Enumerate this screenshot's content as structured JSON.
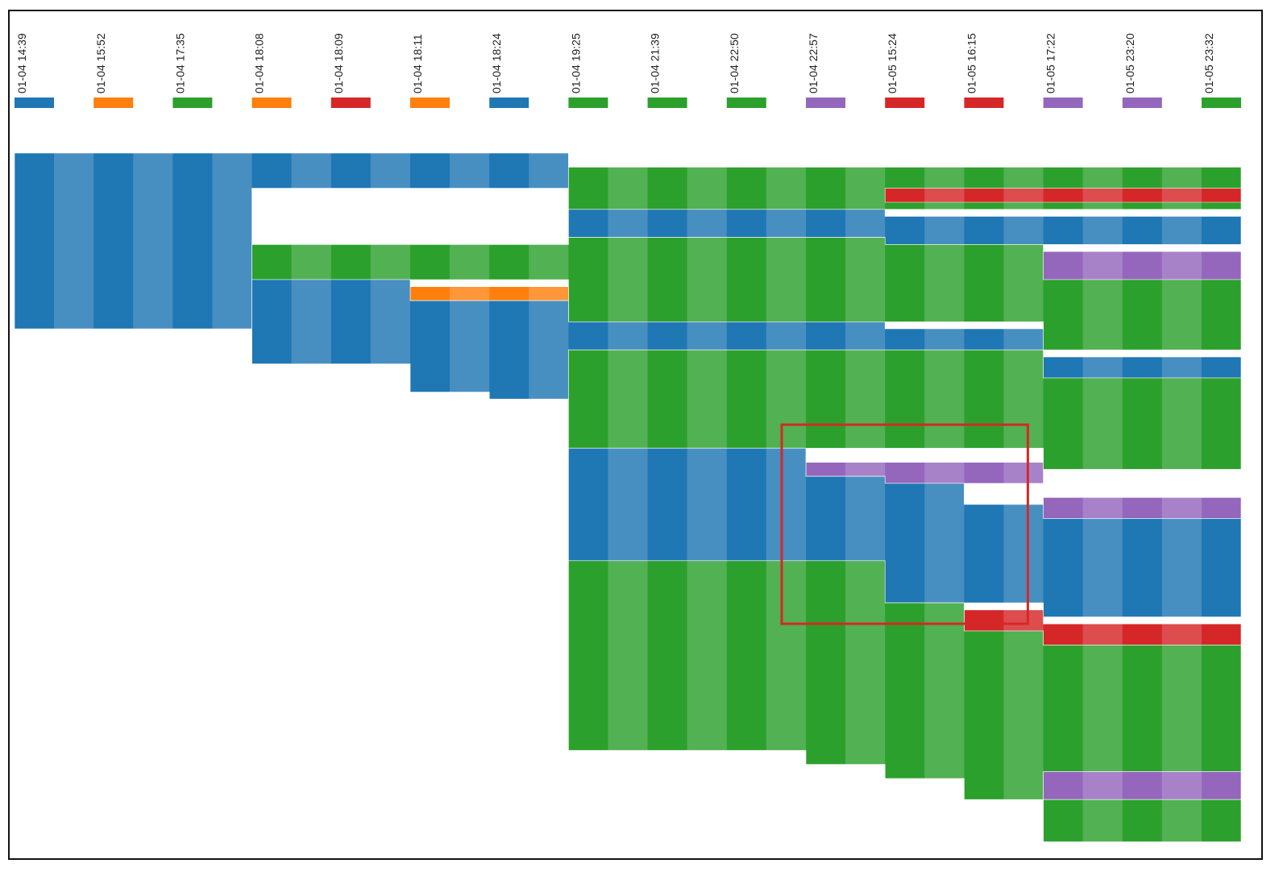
{
  "colors": {
    "blue": "#1f77b4",
    "orange": "#ff7f0e",
    "green": "#2ca02c",
    "red": "#d62728",
    "purple": "#9467bd",
    "highlight": "#d62728"
  },
  "chart_data": {
    "type": "area",
    "x": [
      "01-04 14:39",
      "01-04 15:52",
      "01-04 17:35",
      "01-04 18:08",
      "01-04 18:09",
      "01-04 18:11",
      "01-04 18:24",
      "01-04 19:25",
      "01-04 21:39",
      "01-04 22:50",
      "01-04 22:57",
      "01-05 15:24",
      "01-05 16:15",
      "01-05 17:22",
      "01-05 23:20",
      "01-05 23:32"
    ],
    "legend_colors": [
      "blue",
      "orange",
      "green",
      "orange",
      "red",
      "orange",
      "blue",
      "green",
      "green",
      "green",
      "purple",
      "red",
      "red",
      "purple",
      "purple",
      "green"
    ],
    "ylim": [
      0,
      100
    ],
    "series_stack_order": [
      "blue",
      "green",
      "red",
      "orange",
      "purple"
    ],
    "bands": [
      {
        "color": "blue",
        "top": [
          0,
          0,
          0,
          0,
          0,
          0,
          0,
          2,
          2,
          2,
          2,
          2,
          2,
          2,
          2,
          2
        ],
        "bottom": [
          25,
          25,
          25,
          5,
          5,
          5,
          5,
          2,
          2,
          2,
          2,
          2,
          2,
          2,
          2,
          2
        ]
      },
      {
        "color": "green",
        "top": [
          0,
          0,
          0,
          0,
          0,
          0,
          0,
          2,
          2,
          2,
          2,
          2,
          2,
          2,
          2,
          2
        ],
        "bottom": [
          0,
          0,
          0,
          0,
          0,
          0,
          0,
          8,
          8,
          8,
          8,
          8,
          8,
          8,
          8,
          8
        ]
      },
      {
        "color": "red",
        "top": [
          0,
          0,
          0,
          0,
          0,
          0,
          0,
          0,
          0,
          0,
          0,
          5,
          5,
          5,
          5,
          5
        ],
        "bottom": [
          0,
          0,
          0,
          0,
          0,
          0,
          0,
          0,
          0,
          0,
          0,
          7,
          7,
          7,
          7,
          7
        ]
      },
      {
        "color": "blue",
        "top": [
          0,
          0,
          0,
          0,
          0,
          0,
          0,
          8,
          8,
          8,
          8,
          9,
          9,
          9,
          9,
          9
        ],
        "bottom": [
          0,
          0,
          0,
          0,
          0,
          0,
          0,
          12,
          12,
          12,
          12,
          13,
          13,
          13,
          13,
          13
        ]
      },
      {
        "color": "purple",
        "top": [
          0,
          0,
          0,
          0,
          0,
          0,
          0,
          0,
          0,
          0,
          0,
          0,
          0,
          14,
          14,
          14
        ],
        "bottom": [
          0,
          0,
          0,
          0,
          0,
          0,
          0,
          0,
          0,
          0,
          0,
          0,
          0,
          18,
          18,
          18
        ]
      },
      {
        "color": "green",
        "top": [
          0,
          0,
          0,
          13,
          13,
          13,
          13,
          12,
          12,
          12,
          12,
          13,
          13,
          18,
          18,
          18
        ],
        "bottom": [
          0,
          0,
          0,
          18,
          18,
          18,
          18,
          24,
          24,
          24,
          24,
          24,
          24,
          28,
          28,
          28
        ]
      },
      {
        "color": "orange",
        "top": [
          0,
          0,
          0,
          0,
          0,
          19,
          19,
          0,
          0,
          0,
          0,
          0,
          0,
          0,
          0,
          0
        ],
        "bottom": [
          0,
          0,
          0,
          0,
          0,
          21,
          21,
          0,
          0,
          0,
          0,
          0,
          0,
          0,
          0,
          0
        ]
      },
      {
        "color": "blue",
        "top": [
          0,
          0,
          0,
          18,
          18,
          21,
          21,
          24,
          24,
          24,
          24,
          25,
          25,
          29,
          29,
          29
        ],
        "bottom": [
          0,
          0,
          0,
          30,
          30,
          34,
          35,
          28,
          28,
          28,
          28,
          28,
          28,
          32,
          32,
          32
        ]
      },
      {
        "color": "green",
        "top": [
          0,
          0,
          0,
          0,
          0,
          0,
          0,
          28,
          28,
          28,
          28,
          28,
          28,
          32,
          32,
          32
        ],
        "bottom": [
          0,
          0,
          0,
          0,
          0,
          0,
          0,
          42,
          42,
          42,
          42,
          42,
          42,
          45,
          45,
          45
        ]
      },
      {
        "color": "purple",
        "top": [
          0,
          0,
          0,
          0,
          0,
          0,
          0,
          0,
          0,
          0,
          44,
          44,
          44,
          49,
          49,
          49
        ],
        "bottom": [
          0,
          0,
          0,
          0,
          0,
          0,
          0,
          0,
          0,
          0,
          46,
          47,
          47,
          52,
          52,
          52
        ]
      },
      {
        "color": "blue",
        "top": [
          0,
          0,
          0,
          0,
          0,
          0,
          0,
          42,
          42,
          42,
          46,
          47,
          50,
          52,
          52,
          52
        ],
        "bottom": [
          0,
          0,
          0,
          0,
          0,
          0,
          0,
          58,
          58,
          58,
          58,
          64,
          64,
          66,
          66,
          66
        ]
      },
      {
        "color": "red",
        "top": [
          0,
          0,
          0,
          0,
          0,
          0,
          0,
          0,
          0,
          0,
          0,
          0,
          65,
          67,
          67,
          67
        ],
        "bottom": [
          0,
          0,
          0,
          0,
          0,
          0,
          0,
          0,
          0,
          0,
          0,
          0,
          68,
          70,
          70,
          70
        ]
      },
      {
        "color": "green",
        "top": [
          0,
          0,
          0,
          0,
          0,
          0,
          0,
          58,
          58,
          58,
          58,
          64,
          68,
          70,
          70,
          70
        ],
        "bottom": [
          0,
          0,
          0,
          0,
          0,
          0,
          0,
          85,
          85,
          85,
          87,
          89,
          92,
          88,
          88,
          88
        ]
      },
      {
        "color": "purple",
        "top": [
          0,
          0,
          0,
          0,
          0,
          0,
          0,
          0,
          0,
          0,
          0,
          0,
          0,
          88,
          88,
          88
        ],
        "bottom": [
          0,
          0,
          0,
          0,
          0,
          0,
          0,
          0,
          0,
          0,
          0,
          0,
          0,
          92,
          92,
          92
        ]
      },
      {
        "color": "green",
        "top": [
          0,
          0,
          0,
          0,
          0,
          0,
          0,
          0,
          0,
          0,
          0,
          0,
          0,
          92,
          92,
          92
        ],
        "bottom": [
          0,
          0,
          0,
          0,
          0,
          0,
          0,
          0,
          0,
          0,
          0,
          0,
          0,
          98,
          98,
          98
        ]
      }
    ],
    "highlight_box": {
      "x_from": "01-04 22:57",
      "x_to": "01-05 16:15"
    },
    "title": "",
    "xlabel": "",
    "ylabel": ""
  }
}
